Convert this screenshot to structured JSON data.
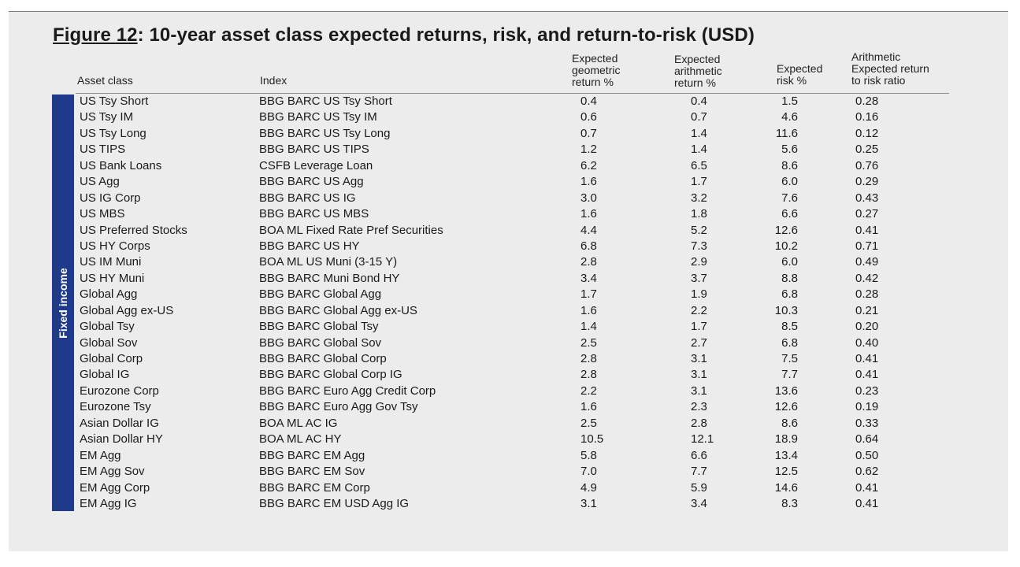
{
  "title": {
    "label": "Figure 12",
    "text": ": 10-year asset class expected returns, risk, and return-to-risk (USD)"
  },
  "headers": {
    "asset_class": "Asset class",
    "index": "Index",
    "geometric": "Expected\ngeometric\nreturn %",
    "arithmetic": "Expected\narithmetic\nreturn %",
    "risk": "Expected\nrisk  %",
    "ratio": "Arithmetic\nExpected return\nto risk ratio"
  },
  "sidebar": {
    "label": "Fixed income",
    "color": "#1f3a8a"
  },
  "rows": [
    {
      "asset": "US Tsy Short",
      "index": "BBG BARC US Tsy Short",
      "geo": "0.4",
      "arith": "0.4",
      "risk": "1.5",
      "ratio": "0.28"
    },
    {
      "asset": "US Tsy IM",
      "index": "BBG BARC US Tsy IM",
      "geo": "0.6",
      "arith": "0.7",
      "risk": "4.6",
      "ratio": "0.16"
    },
    {
      "asset": "US Tsy Long",
      "index": "BBG BARC US Tsy Long",
      "geo": "0.7",
      "arith": "1.4",
      "risk": "11.6",
      "ratio": "0.12"
    },
    {
      "asset": "US TIPS",
      "index": "BBG BARC US TIPS",
      "geo": "1.2",
      "arith": "1.4",
      "risk": "5.6",
      "ratio": "0.25"
    },
    {
      "asset": "US Bank Loans",
      "index": "CSFB Leverage Loan",
      "geo": "6.2",
      "arith": "6.5",
      "risk": "8.6",
      "ratio": "0.76"
    },
    {
      "asset": "US Agg",
      "index": "BBG BARC US Agg",
      "geo": "1.6",
      "arith": "1.7",
      "risk": "6.0",
      "ratio": "0.29"
    },
    {
      "asset": "US IG Corp",
      "index": "BBG BARC US IG",
      "geo": "3.0",
      "arith": "3.2",
      "risk": "7.6",
      "ratio": "0.43"
    },
    {
      "asset": "US MBS",
      "index": "BBG BARC US MBS",
      "geo": "1.6",
      "arith": "1.8",
      "risk": "6.6",
      "ratio": "0.27"
    },
    {
      "asset": "US Preferred Stocks",
      "index": "BOA ML Fixed Rate Pref Securities",
      "geo": "4.4",
      "arith": "5.2",
      "risk": "12.6",
      "ratio": "0.41"
    },
    {
      "asset": "US HY Corps",
      "index": "BBG BARC US HY",
      "geo": "6.8",
      "arith": "7.3",
      "risk": "10.2",
      "ratio": "0.71"
    },
    {
      "asset": "US IM Muni",
      "index": "BOA ML US Muni (3-15 Y)",
      "geo": "2.8",
      "arith": "2.9",
      "risk": "6.0",
      "ratio": "0.49"
    },
    {
      "asset": "US HY Muni",
      "index": "BBG BARC Muni Bond HY",
      "geo": "3.4",
      "arith": "3.7",
      "risk": "8.8",
      "ratio": "0.42"
    },
    {
      "asset": "Global Agg",
      "index": "BBG BARC Global Agg",
      "geo": "1.7",
      "arith": "1.9",
      "risk": "6.8",
      "ratio": "0.28"
    },
    {
      "asset": "Global Agg ex-US",
      "index": "BBG BARC Global Agg ex-US",
      "geo": "1.6",
      "arith": "2.2",
      "risk": "10.3",
      "ratio": "0.21"
    },
    {
      "asset": "Global Tsy",
      "index": "BBG BARC Global Tsy",
      "geo": "1.4",
      "arith": "1.7",
      "risk": "8.5",
      "ratio": "0.20"
    },
    {
      "asset": "Global Sov",
      "index": "BBG BARC Global Sov",
      "geo": "2.5",
      "arith": "2.7",
      "risk": "6.8",
      "ratio": "0.40"
    },
    {
      "asset": "Global Corp",
      "index": "BBG BARC Global Corp",
      "geo": "2.8",
      "arith": "3.1",
      "risk": "7.5",
      "ratio": "0.41"
    },
    {
      "asset": "Global IG",
      "index": "BBG BARC Global Corp IG",
      "geo": "2.8",
      "arith": "3.1",
      "risk": "7.7",
      "ratio": "0.41"
    },
    {
      "asset": "Eurozone Corp",
      "index": "BBG BARC Euro Agg Credit Corp",
      "geo": "2.2",
      "arith": "3.1",
      "risk": "13.6",
      "ratio": "0.23"
    },
    {
      "asset": "Eurozone Tsy",
      "index": "BBG BARC Euro Agg Gov Tsy",
      "geo": "1.6",
      "arith": "2.3",
      "risk": "12.6",
      "ratio": "0.19"
    },
    {
      "asset": "Asian Dollar IG",
      "index": "BOA ML AC IG",
      "geo": "2.5",
      "arith": "2.8",
      "risk": "8.6",
      "ratio": "0.33"
    },
    {
      "asset": "Asian Dollar HY",
      "index": "BOA ML AC HY",
      "geo": "10.5",
      "arith": "12.1",
      "risk": "18.9",
      "ratio": "0.64"
    },
    {
      "asset": "EM Agg",
      "index": "BBG BARC EM Agg",
      "geo": "5.8",
      "arith": "6.6",
      "risk": "13.4",
      "ratio": "0.50"
    },
    {
      "asset": "EM Agg Sov",
      "index": "BBG BARC EM Sov",
      "geo": "7.0",
      "arith": "7.7",
      "risk": "12.5",
      "ratio": "0.62"
    },
    {
      "asset": "EM Agg Corp",
      "index": "BBG BARC EM Corp",
      "geo": "4.9",
      "arith": "5.9",
      "risk": "14.6",
      "ratio": "0.41"
    },
    {
      "asset": "EM Agg IG",
      "index": "BBG BARC EM USD Agg IG",
      "geo": "3.1",
      "arith": "3.4",
      "risk": "8.3",
      "ratio": "0.41"
    }
  ]
}
